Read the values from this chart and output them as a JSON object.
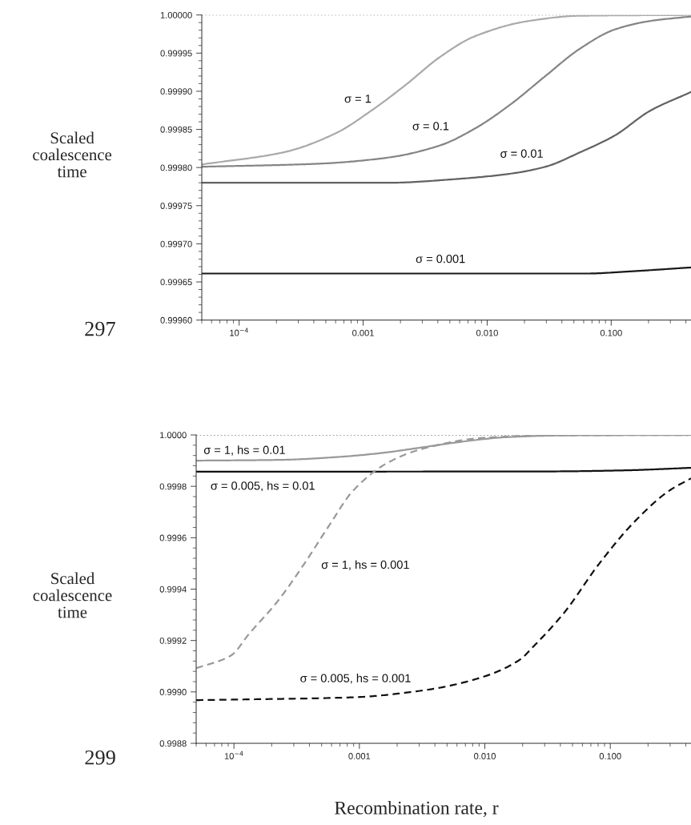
{
  "chart_data": [
    {
      "type": "line",
      "ylabel": "Scaled\ncoalescence\ntime",
      "log": "x",
      "grid": false,
      "xlim": [
        5e-05,
        0.44
      ],
      "xticks": [
        {
          "value": 0.0001,
          "label": "10$^{−4}$"
        },
        0.001,
        {
          "value": 0.01,
          "label": "0.010"
        },
        {
          "value": 0.1,
          "label": "0.100"
        }
      ],
      "ylim": [
        0.9996,
        1.0
      ],
      "yticks": [
        {
          "value": 0.9996,
          "label": "0.99960"
        },
        0.99965,
        {
          "value": 0.9997,
          "label": "0.99970"
        },
        0.99975,
        {
          "value": 0.9998,
          "label": "0.99980"
        },
        0.99985,
        {
          "value": 0.9999,
          "label": "0.99990"
        },
        0.99995,
        {
          "value": 1.0,
          "label": "1.00000"
        }
      ],
      "ref_lines": [
        {
          "axis": "y",
          "value": 1.0,
          "color": "#888888",
          "line_style": "dotted"
        }
      ],
      "series": [
        {
          "name": "σ = 1",
          "color": "#aaaaaa",
          "line_style": "solid",
          "x": [
            5e-05,
            0.000229,
            0.000603,
            0.00115,
            0.00219,
            0.00417,
            0.00794,
            0.0214,
            0.0562,
            0.44
          ],
          "values": [
            0.999804,
            0.99982,
            0.999845,
            0.999874,
            0.999908,
            0.999945,
            0.999972,
            0.999992,
            0.999999,
            1.0
          ]
        },
        {
          "name": "σ = 0.1",
          "color": "#858585",
          "line_style": "solid",
          "x": [
            5e-05,
            0.000437,
            0.00158,
            0.00417,
            0.00794,
            0.0155,
            0.0295,
            0.0562,
            0.107,
            0.204,
            0.44
          ],
          "values": [
            0.999801,
            0.999805,
            0.999813,
            0.999829,
            0.999851,
            0.999883,
            0.99992,
            0.999956,
            0.999981,
            0.999992,
            0.999998
          ]
        },
        {
          "name": "σ = 0.01",
          "color": "#626262",
          "line_style": "solid",
          "x": [
            5e-05,
            0.00158,
            0.00575,
            0.0155,
            0.0295,
            0.0562,
            0.107,
            0.204,
            0.44
          ],
          "values": [
            0.99978,
            0.99978,
            0.999785,
            0.999792,
            0.999801,
            0.99982,
            0.999842,
            0.999874,
            0.999899
          ]
        },
        {
          "name": "σ = 0.001",
          "color": "#1a1a1a",
          "line_style": "solid",
          "x": [
            5e-05,
            0.063,
            0.148,
            0.44
          ],
          "values": [
            0.999661,
            0.999661,
            0.999664,
            0.999669
          ]
        }
      ],
      "annotations": [
        "297"
      ]
    },
    {
      "type": "line",
      "ylabel": "Scaled\ncoalescence\ntime",
      "xlabel": "Recombination rate, r",
      "log": "x",
      "grid": false,
      "xlim": [
        5e-05,
        0.44
      ],
      "xticks": [
        {
          "value": 0.0001,
          "label": "10$^{−4}$"
        },
        0.001,
        {
          "value": 0.01,
          "label": "0.010"
        },
        {
          "value": 0.1,
          "label": "0.100"
        }
      ],
      "ylim": [
        0.9988,
        1.0
      ],
      "yticks": [
        0.9988,
        {
          "value": 0.999,
          "label": "0.9990"
        },
        0.9992,
        0.9994,
        0.9996,
        0.9998,
        {
          "value": 1.0,
          "label": "1.0000"
        }
      ],
      "ref_lines": [
        {
          "axis": "y",
          "value": 1.0,
          "color": "#888888",
          "line_style": "dotted"
        }
      ],
      "series": [
        {
          "name": "σ = 1, hs = 0.01",
          "color": "#999999",
          "line_style": "solid",
          "x": [
            5e-05,
            0.000234,
            0.000759,
            0.00158,
            0.00331,
            0.00692,
            0.0145,
            0.0407,
            0.44
          ],
          "values": [
            0.9999,
            0.999903,
            0.999916,
            0.999931,
            0.999953,
            0.999975,
            0.999991,
            0.999998,
            1.0
          ]
        },
        {
          "name": "σ = 0.005, hs = 0.01",
          "color": "#111111",
          "line_style": "solid",
          "x": [
            5e-05,
            0.0316,
            0.126,
            0.44
          ],
          "values": [
            0.999857,
            0.999858,
            0.999862,
            0.999872
          ]
        },
        {
          "name": "σ = 1, hs = 0.001",
          "color": "#999999",
          "line_style": "dashed",
          "x": [
            5e-05,
            9.5e-05,
            0.000132,
            0.000219,
            0.000363,
            0.000575,
            0.000891,
            0.0017,
            0.00324,
            0.00933,
            0.0302,
            0.44
          ],
          "values": [
            0.999092,
            0.999142,
            0.999226,
            0.999348,
            0.999498,
            0.999648,
            0.999783,
            0.999893,
            0.999947,
            0.999988,
            0.999998,
            1.0
          ]
        },
        {
          "name": "σ = 0.005, hs = 0.001",
          "color": "#111111",
          "line_style": "dashed",
          "x": [
            5e-05,
            0.000132,
            0.000891,
            0.00324,
            0.00851,
            0.0195,
            0.0224,
            0.0427,
            0.0813,
            0.155,
            0.295,
            0.44
          ],
          "values": [
            0.998968,
            0.998971,
            0.998979,
            0.999006,
            0.99905,
            0.999129,
            0.999158,
            0.999307,
            0.999498,
            0.999661,
            0.999783,
            0.999831
          ]
        }
      ],
      "annotations": [
        "299"
      ]
    }
  ]
}
